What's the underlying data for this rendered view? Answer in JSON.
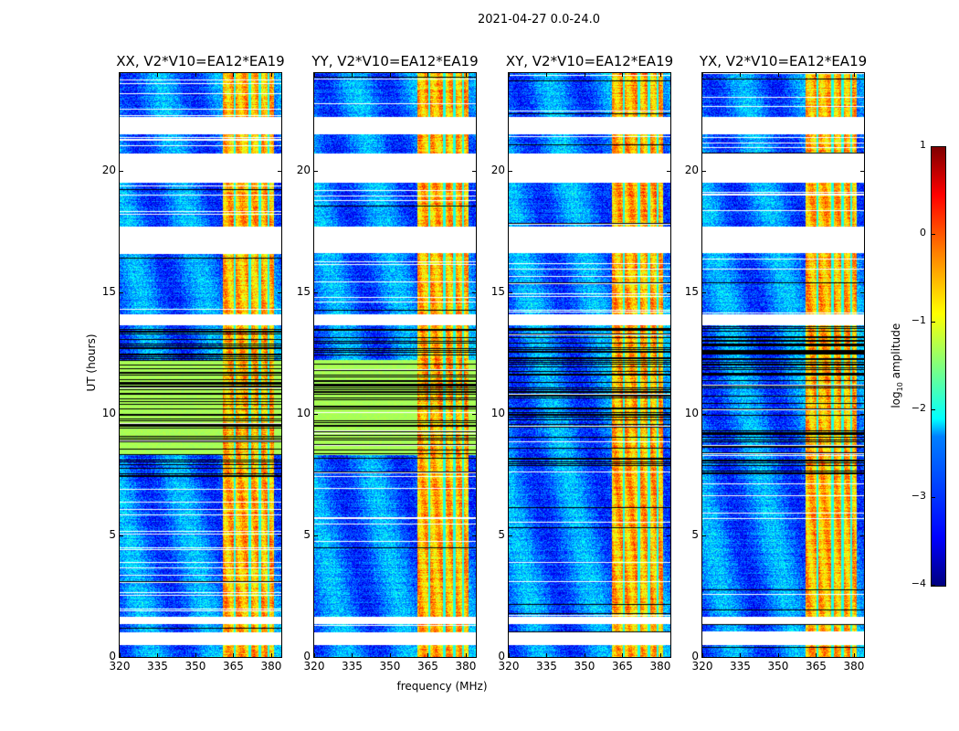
{
  "chart_data": {
    "type": "heatmap",
    "title": "2021-04-27 0.0-24.0",
    "xlabel": "frequency (MHz)",
    "ylabel": "UT (hours)",
    "xlim": [
      320,
      384
    ],
    "ylim": [
      0,
      24
    ],
    "xticks": [
      "320",
      "335",
      "350",
      "365",
      "380"
    ],
    "xtick_values": [
      320,
      335,
      350,
      365,
      380
    ],
    "yticks": [
      "0",
      "5",
      "10",
      "15",
      "20"
    ],
    "ytick_values": [
      0,
      5,
      10,
      15,
      20
    ],
    "panels": [
      {
        "title": "XX, V2*V10=EA12*EA19",
        "green_block_hours": [
          8.3,
          12.2
        ]
      },
      {
        "title": "YY, V2*V10=EA12*EA19",
        "green_block_hours": [
          8.3,
          12.2
        ]
      },
      {
        "title": "XY, V2*V10=EA12*EA19",
        "green_block_hours": null
      },
      {
        "title": "YX, V2*V10=EA12*EA19",
        "green_block_hours": null
      }
    ],
    "flagged_hours": [
      [
        0.5,
        1.0
      ],
      [
        1.35,
        1.65
      ],
      [
        13.65,
        14.1
      ],
      [
        16.6,
        17.7
      ],
      [
        19.5,
        20.7
      ],
      [
        21.5,
        22.2
      ]
    ],
    "dense_flag_lines_hours": [
      7.5,
      13.7
    ],
    "high_amplitude_band_mhz": [
      361,
      381
    ],
    "band_gap_lines_mhz": [
      365.5,
      371.5,
      375.5,
      379
    ],
    "background_log_amplitude": -2.8,
    "band_log_amplitude": -0.5,
    "colorbar": {
      "label": "log10 amplitude",
      "label_main": "log",
      "label_sub": "10",
      "label_rest": " amplitude",
      "range": [
        -4,
        1
      ],
      "ticks": [
        "1",
        "0",
        "−1",
        "−2",
        "−3",
        "−4"
      ],
      "tick_values": [
        1,
        0,
        -1,
        -2,
        -3,
        -4
      ],
      "colormap": "jet"
    }
  }
}
